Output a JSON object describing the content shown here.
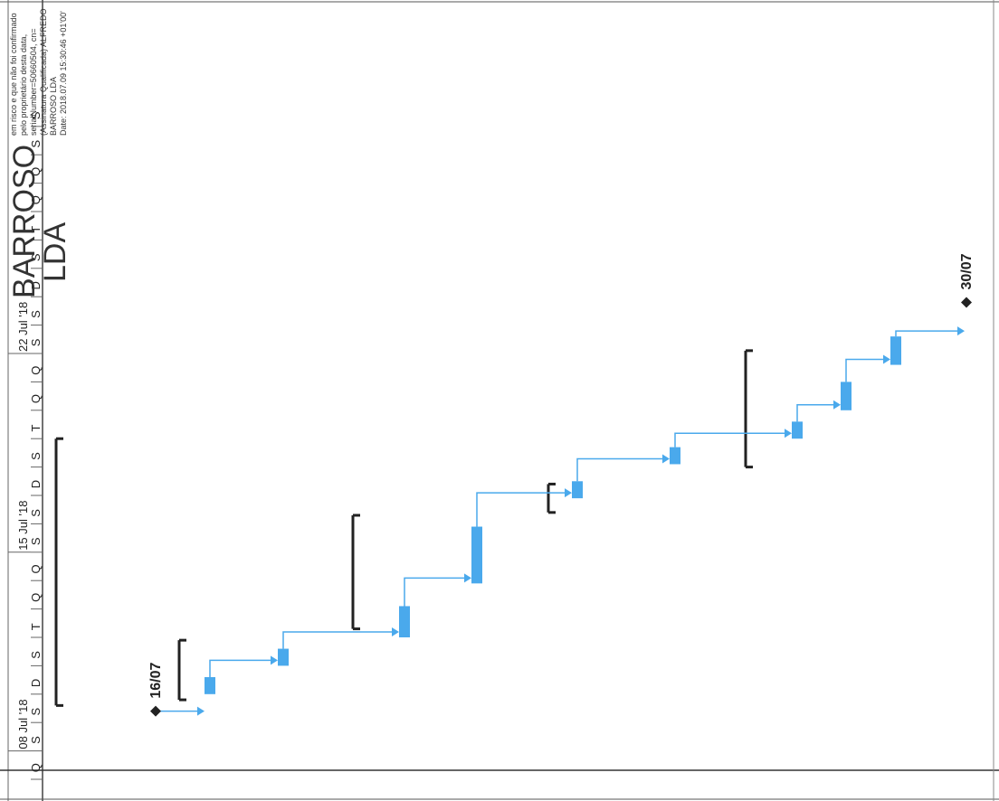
{
  "chart_data": {
    "type": "gantt",
    "orientation": "rotated-90",
    "timescale": {
      "weeks": [
        "08 Jul '18",
        "15 Jul '18",
        "22 Jul '18"
      ],
      "day_letters": [
        "Q",
        "S",
        "S",
        "D",
        "S",
        "T",
        "Q",
        "Q",
        "S",
        "S",
        "D",
        "S",
        "T",
        "Q",
        "Q",
        "S",
        "S",
        "D",
        "S",
        "T",
        "Q",
        "Q",
        "S",
        "S"
      ]
    },
    "tasks": [
      {
        "start": 3.0,
        "end": 3.6,
        "color": "#4aa9ec"
      },
      {
        "start": 4.0,
        "end": 4.6,
        "color": "#4aa9ec"
      },
      {
        "start": 5.0,
        "end": 6.1,
        "color": "#4aa9ec"
      },
      {
        "start": 6.9,
        "end": 8.9,
        "color": "#4aa9ec"
      },
      {
        "start": 9.9,
        "end": 10.5,
        "color": "#4aa9ec"
      },
      {
        "start": 11.1,
        "end": 11.7,
        "color": "#4aa9ec"
      },
      {
        "start": 12.0,
        "end": 12.6,
        "color": "#4aa9ec"
      },
      {
        "start": 13.0,
        "end": 14.0,
        "color": "#4aa9ec"
      },
      {
        "start": 14.6,
        "end": 15.6,
        "color": "#4aa9ec"
      }
    ],
    "summaries": [
      {
        "start": 2.8,
        "end": 4.9
      },
      {
        "start": 5.3,
        "end": 9.3
      },
      {
        "start": 9.4,
        "end": 10.4
      },
      {
        "start": 11.0,
        "end": 15.1
      }
    ],
    "milestones": [
      {
        "label": "16/07",
        "pos": 2.4
      },
      {
        "label": "30/07",
        "pos": 16.8
      }
    ],
    "project_summary": {
      "start": 2.6,
      "end": 12.0
    }
  },
  "stamp": {
    "company_lines": [
      "BARROSO",
      "LDA"
    ]
  },
  "signature_text": [
    "em risco e que não foi confirmado",
    "pelo proprietário desta data,",
    "serialNumber=50660504, cn=",
    "(Assinatura Qualificada) ALFREDO",
    "BARROSO LDA",
    "Date: 2018.07.09 15:30:46 +01'00'"
  ]
}
